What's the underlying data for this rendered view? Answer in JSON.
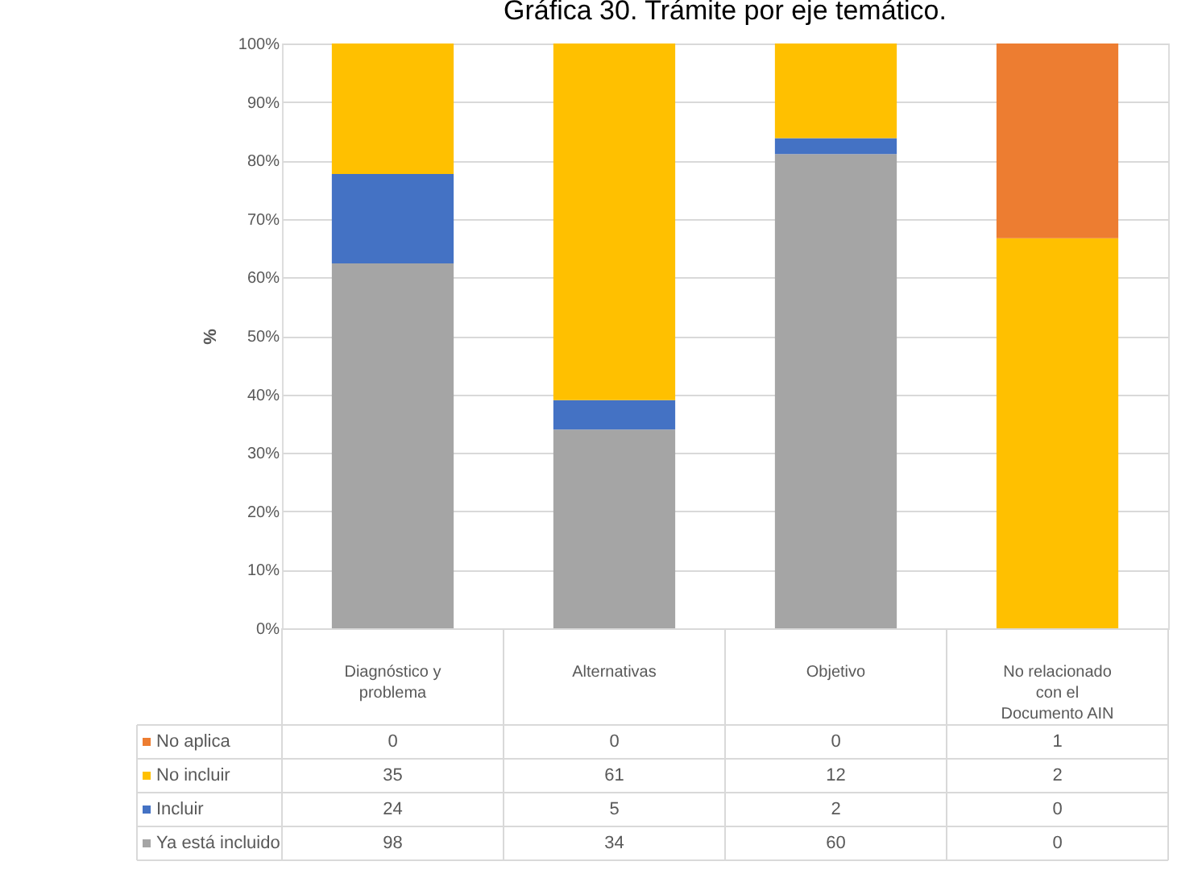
{
  "chart_data": {
    "type": "bar",
    "title": "Gráfica 30. Trámite por eje temático.",
    "ylabel": "%",
    "categories": [
      "Diagnóstico y problema",
      "Alternativas",
      "Objetivo",
      "No relacionado con el Documento AIN"
    ],
    "stacked": true,
    "series": [
      {
        "name": "Ya está incluido",
        "color": "#a5a5a5",
        "values": [
          62.4,
          34,
          81.1,
          0
        ]
      },
      {
        "name": "Incluir",
        "color": "#4472c4",
        "values": [
          15.3,
          5,
          2.7,
          0
        ]
      },
      {
        "name": "No incluir",
        "color": "#ffc000",
        "values": [
          22.3,
          61,
          16.2,
          66.7
        ]
      },
      {
        "name": "No aplica",
        "color": "#ed7d31",
        "values": [
          0,
          0,
          0,
          33.3
        ]
      }
    ],
    "annotations": [
      "0",
      "0",
      "0",
      "1",
      "35",
      "61",
      "12",
      "2",
      "24",
      "5",
      "2",
      "0",
      "98",
      "34",
      "60",
      "0"
    ],
    "ylim": [
      0,
      100
    ],
    "yticks": [
      {
        "value": 0,
        "label": "0%"
      },
      {
        "value": 10,
        "label": "10%"
      },
      {
        "value": 20,
        "label": "20%"
      },
      {
        "value": 30,
        "label": "30%"
      },
      {
        "value": 40,
        "label": "40%"
      },
      {
        "value": 50,
        "label": "50%"
      },
      {
        "value": 60,
        "label": "60%"
      },
      {
        "value": 70,
        "label": "70%"
      },
      {
        "value": 80,
        "label": "80%"
      },
      {
        "value": 90,
        "label": "90%"
      },
      {
        "value": 100,
        "label": "100%"
      }
    ],
    "grid": "y",
    "legend": "bottom"
  }
}
